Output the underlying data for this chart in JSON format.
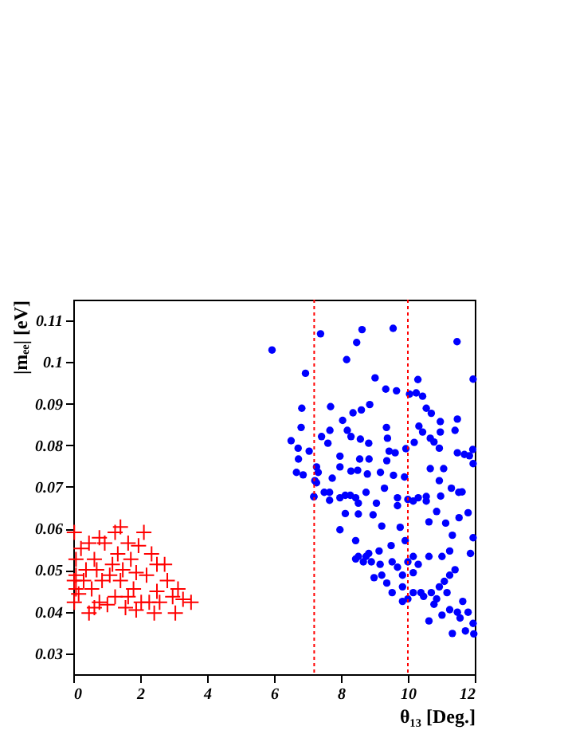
{
  "chart_data": {
    "type": "scatter",
    "xlabel": "θ₁₃ [Deg.]",
    "ylabel": "|mₑₑ| [eV]",
    "xlim": [
      0,
      12
    ],
    "ylim": [
      0.025,
      0.115
    ],
    "xticks": [
      0,
      2,
      4,
      6,
      8,
      10,
      12
    ],
    "yticks": [
      0.03,
      0.04,
      0.05,
      0.06,
      0.07,
      0.08,
      0.09,
      0.1,
      0.11
    ],
    "grid": false,
    "series": [
      {
        "color": "#ff0000",
        "marker": "cross",
        "x": [
          0.03,
          0.23,
          0.08,
          0.38,
          0.03,
          0.16,
          0.03,
          0.63,
          0.86,
          0.78,
          0.47,
          1.25,
          1.41,
          0.94,
          1.17,
          1.41,
          1.64,
          1.88,
          2.11,
          1.95,
          2.34,
          2.19,
          2.5,
          2.27,
          2.81,
          2.97,
          3.13,
          3.28,
          3.52,
          3.05,
          2.73,
          1.72,
          0.55,
          0.31,
          1.02,
          1.25,
          1.8,
          2.03,
          2.42,
          2.58,
          0.08,
          0.7,
          1.09,
          1.48,
          1.88,
          1.33,
          0.47,
          0.78,
          1.64,
          2.5,
          0.08,
          1.56,
          0.63
        ],
        "values": [
          0.0591,
          0.0552,
          0.0526,
          0.0501,
          0.0475,
          0.0443,
          0.0423,
          0.0526,
          0.0475,
          0.0423,
          0.0397,
          0.0591,
          0.0604,
          0.0565,
          0.0514,
          0.0475,
          0.0436,
          0.0404,
          0.0591,
          0.0559,
          0.0539,
          0.0488,
          0.0449,
          0.0423,
          0.0475,
          0.0436,
          0.0455,
          0.043,
          0.0423,
          0.0397,
          0.0514,
          0.0526,
          0.0455,
          0.0475,
          0.0417,
          0.0436,
          0.0455,
          0.0423,
          0.0397,
          0.0423,
          0.0488,
          0.0501,
          0.0488,
          0.0501,
          0.0494,
          0.0539,
          0.0565,
          0.0578,
          0.0565,
          0.0514,
          0.0455,
          0.041,
          0.041
        ]
      },
      {
        "color": "#0000ff",
        "marker": "circle",
        "x": [
          5.94,
          7.39,
          8.63,
          9.56,
          8.47,
          8.17,
          11.47,
          6.94,
          9.02,
          11.95,
          9.34,
          9.66,
          10.05,
          10.3,
          10.25,
          10.44,
          6.83,
          7.69,
          8.86,
          8.61,
          8.36,
          8.05,
          10.55,
          10.7,
          10.97,
          11.48,
          6.81,
          7.67,
          8.19,
          9.36,
          10.33,
          10.44,
          10.97,
          11.41,
          6.51,
          7.42,
          7.61,
          8.3,
          8.58,
          8.83,
          9.39,
          10.19,
          10.67,
          10.78,
          6.72,
          7.05,
          6.73,
          10.94,
          11.94,
          11.48,
          11.69,
          11.84,
          11.95,
          7.97,
          8.56,
          8.84,
          9.44,
          9.37,
          9.62,
          9.94,
          6.67,
          6.87,
          7.27,
          7.32,
          7.97,
          8.3,
          8.5,
          8.79,
          9.18,
          9.57,
          9.9,
          10.67,
          11.07,
          10.94,
          7.22,
          7.74,
          11.3,
          11.52,
          7.5,
          8.13,
          8.44,
          8.75,
          9.3,
          9.69,
          10.0,
          10.31,
          10.55,
          10.98,
          11.62,
          7.66,
          7.19,
          7.19,
          7.27,
          7.66,
          7.97,
          8.28,
          8.52,
          8.13,
          8.52,
          7.97,
          8.96,
          9.22,
          9.77,
          9.06,
          9.69,
          10.16,
          10.55,
          10.86,
          11.13,
          11.53,
          11.8,
          10.63,
          9.92,
          9.5,
          8.44,
          8.83,
          8.52,
          8.91,
          9.17,
          9.69,
          9.84,
          8.75,
          9.22,
          9.37,
          9.84,
          10.16,
          9.84,
          10.47,
          10.7,
          10.94,
          11.09,
          11.25,
          11.41,
          10.78,
          10.63,
          11.25,
          11.56,
          11.33,
          11.72,
          11.97,
          11.95,
          11.8,
          11.48,
          10.16,
          10.63,
          11.02,
          11.25,
          11.87,
          11.95,
          11.33,
          10.16,
          10.39,
          9.53,
          8.99,
          8.67,
          8.44,
          9.14,
          9.53,
          10.0,
          10.31,
          10.0,
          10.86,
          11.02,
          11.17,
          11.64
        ],
        "values": [
          0.1029,
          0.1068,
          0.1078,
          0.1081,
          0.1047,
          0.1006,
          0.1049,
          0.0973,
          0.0962,
          0.0959,
          0.0935,
          0.0931,
          0.0923,
          0.0958,
          0.0926,
          0.0918,
          0.0889,
          0.0893,
          0.0898,
          0.0885,
          0.0878,
          0.086,
          0.0889,
          0.0877,
          0.0857,
          0.0863,
          0.0843,
          0.0836,
          0.0836,
          0.0843,
          0.0846,
          0.0832,
          0.0832,
          0.0836,
          0.0811,
          0.0821,
          0.0805,
          0.0821,
          0.0815,
          0.0805,
          0.0817,
          0.0807,
          0.0817,
          0.0808,
          0.0793,
          0.0786,
          0.0767,
          0.0793,
          0.079,
          0.0782,
          0.0778,
          0.0775,
          0.0756,
          0.0774,
          0.0767,
          0.0767,
          0.0786,
          0.0763,
          0.0782,
          0.0792,
          0.0735,
          0.0729,
          0.0748,
          0.0735,
          0.0748,
          0.0738,
          0.074,
          0.0731,
          0.0735,
          0.0728,
          0.0724,
          0.0744,
          0.0744,
          0.0715,
          0.0715,
          0.0721,
          0.0697,
          0.0687,
          0.0687,
          0.068,
          0.0674,
          0.0687,
          0.0697,
          0.0674,
          0.067,
          0.0674,
          0.0677,
          0.0678,
          0.0688,
          0.0668,
          0.0677,
          0.0676,
          0.071,
          0.0687,
          0.0674,
          0.068,
          0.0661,
          0.0636,
          0.0635,
          0.0597,
          0.0633,
          0.0606,
          0.0603,
          0.0661,
          0.0655,
          0.0666,
          0.0666,
          0.0641,
          0.0613,
          0.0626,
          0.0638,
          0.0616,
          0.0571,
          0.0559,
          0.0571,
          0.054,
          0.0533,
          0.052,
          0.0514,
          0.0507,
          0.0488,
          0.0533,
          0.0488,
          0.0469,
          0.046,
          0.0446,
          0.0425,
          0.0437,
          0.0446,
          0.046,
          0.0473,
          0.0488,
          0.0501,
          0.0418,
          0.0378,
          0.0405,
          0.0385,
          0.0348,
          0.0354,
          0.0347,
          0.0372,
          0.0399,
          0.0399,
          0.0533,
          0.0533,
          0.0533,
          0.0546,
          0.054,
          0.0578,
          0.0584,
          0.0494,
          0.0446,
          0.0446,
          0.0482,
          0.052,
          0.0527,
          0.0546,
          0.052,
          0.052,
          0.0514,
          0.0431,
          0.0431,
          0.0392,
          0.0446,
          0.0425
        ]
      }
    ],
    "ref_lines": [
      {
        "axis": "x",
        "value": 7.2,
        "color": "#ff0000",
        "line_style": "dotted"
      },
      {
        "axis": "x",
        "value": 10,
        "color": "#ff0000",
        "line_style": "dotted"
      }
    ]
  }
}
